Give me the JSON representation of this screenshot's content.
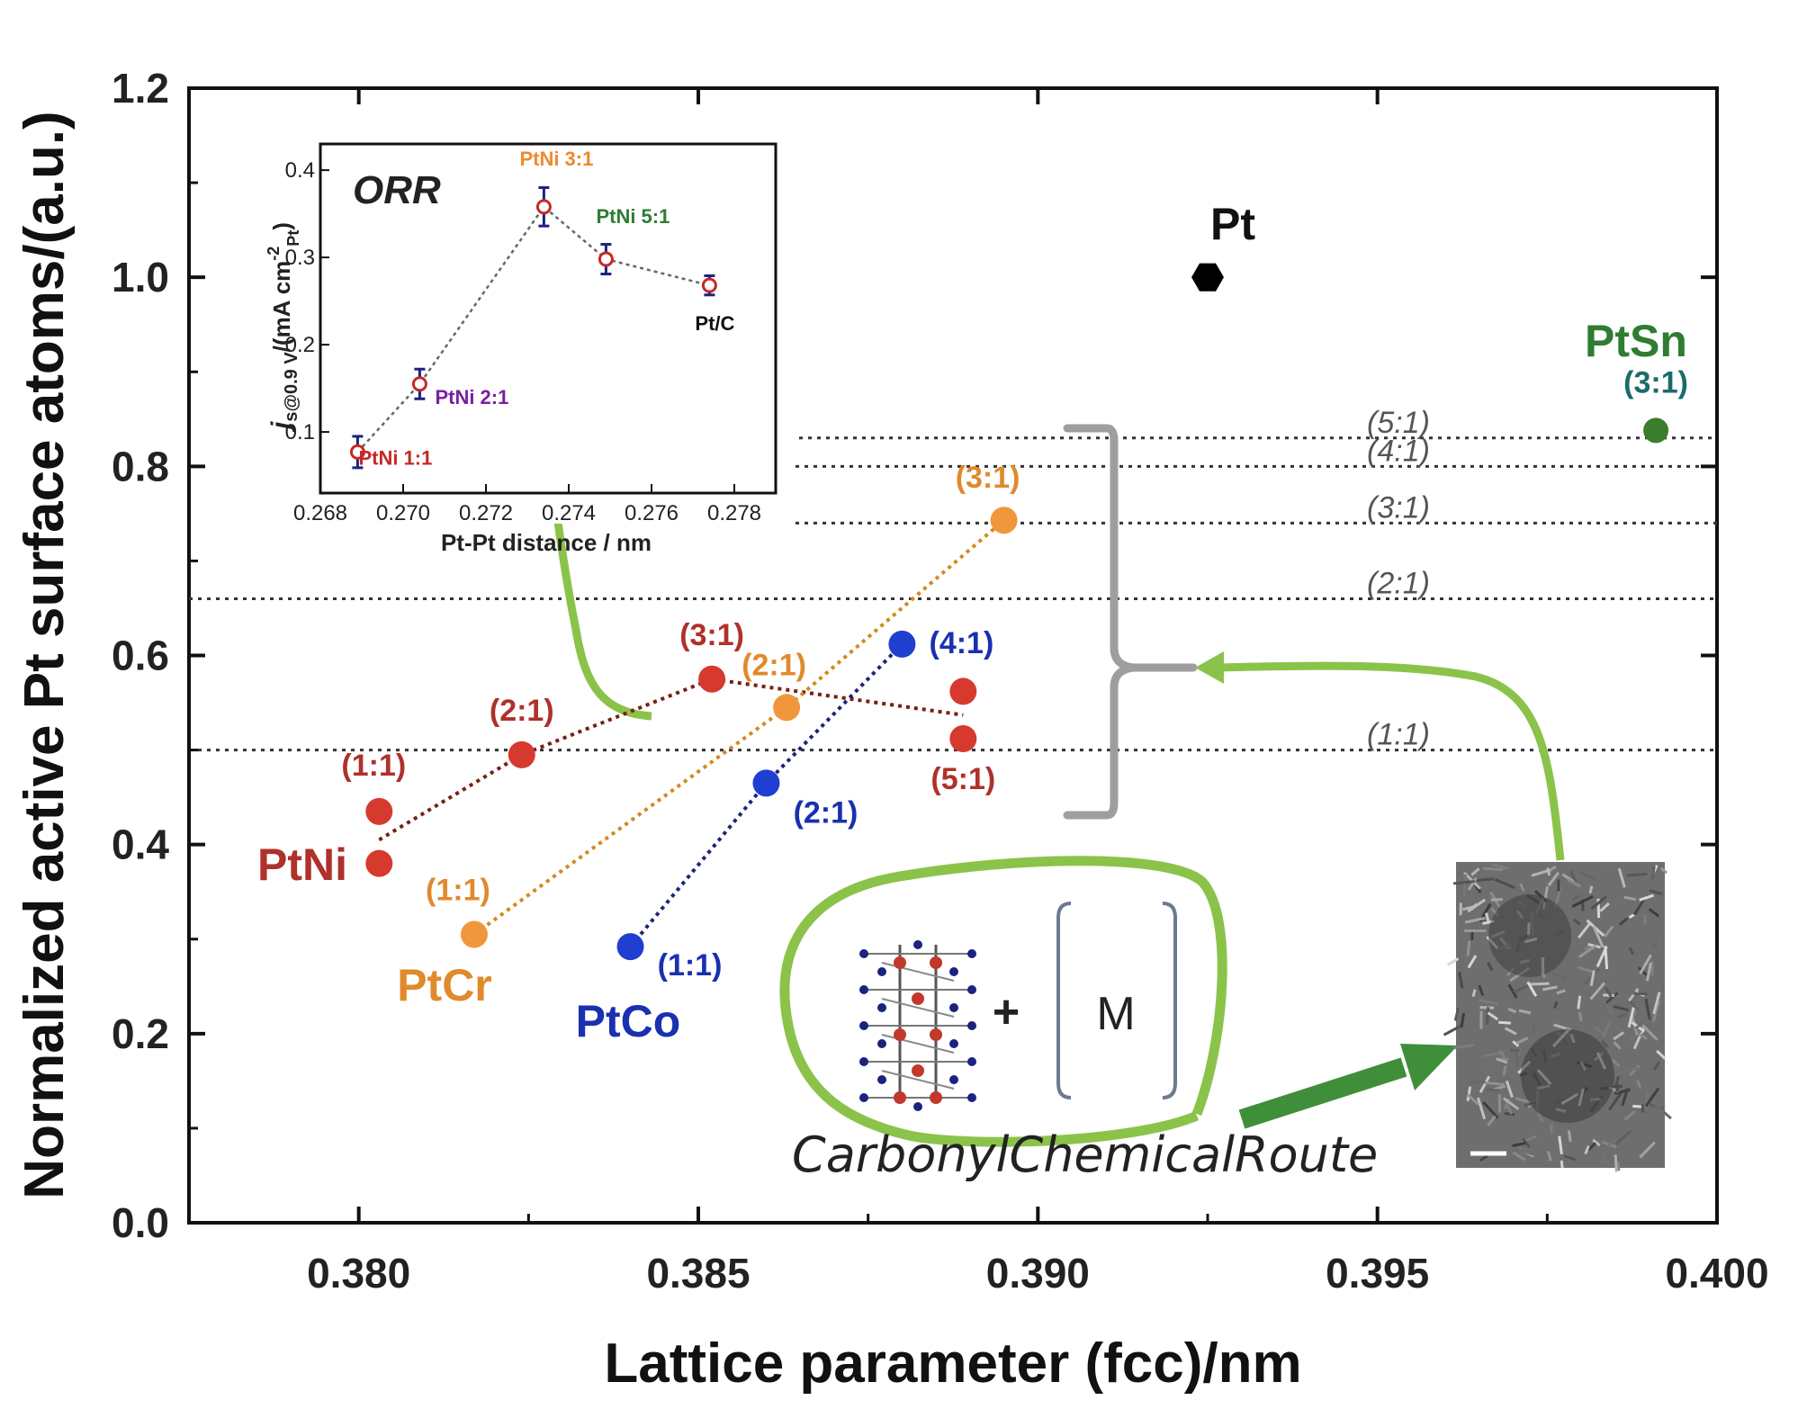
{
  "chart_data": [
    {
      "type": "scatter",
      "xlabel": "Lattice parameter (fcc)/nm",
      "ylabel": "Normalized active Pt surface atoms/(a.u.)",
      "xlim": [
        0.3775,
        0.4
      ],
      "ylim": [
        0.0,
        1.2
      ],
      "xticks": [
        "0.380",
        "0.385",
        "0.390",
        "0.395",
        "0.400"
      ],
      "yticks": [
        "0.0",
        "0.2",
        "0.4",
        "0.6",
        "0.8",
        "1.0",
        "1.2"
      ],
      "grid": false,
      "reference_lines": [
        {
          "label": "(5:1)",
          "y": 0.83
        },
        {
          "label": "(4:1)",
          "y": 0.8
        },
        {
          "label": "(3:1)",
          "y": 0.74
        },
        {
          "label": "(2:1)",
          "y": 0.66
        },
        {
          "label": "(1:1)",
          "y": 0.5
        }
      ],
      "series": [
        {
          "name": "PtNi",
          "color": "#d63a2f",
          "label_color": "#b0302a",
          "trend_color": "#7a1e14",
          "points": [
            {
              "x": 0.3803,
              "y": 0.435,
              "label": "(1:1)"
            },
            {
              "x": 0.3803,
              "y": 0.38,
              "label": ""
            },
            {
              "x": 0.3824,
              "y": 0.495,
              "label": "(2:1)"
            },
            {
              "x": 0.3852,
              "y": 0.575,
              "label": "(3:1)"
            },
            {
              "x": 0.3889,
              "y": 0.562,
              "label": ""
            },
            {
              "x": 0.3889,
              "y": 0.512,
              "label": "(5:1)"
            }
          ],
          "trend": [
            [
              0.3803,
              0.405
            ],
            [
              0.3824,
              0.495
            ],
            [
              0.3852,
              0.575
            ],
            [
              0.3889,
              0.537
            ]
          ]
        },
        {
          "name": "PtCr",
          "color": "#f0973c",
          "label_color": "#e08a2c",
          "trend_color": "#d4891e",
          "points": [
            {
              "x": 0.3817,
              "y": 0.305,
              "label": "(1:1)"
            },
            {
              "x": 0.3863,
              "y": 0.545,
              "label": "(2:1)"
            },
            {
              "x": 0.3895,
              "y": 0.743,
              "label": "(3:1)"
            }
          ],
          "trend": [
            [
              0.3817,
              0.305
            ],
            [
              0.3863,
              0.545
            ],
            [
              0.3895,
              0.743
            ]
          ]
        },
        {
          "name": "PtCo",
          "color": "#1f3fd1",
          "label_color": "#1a30b0",
          "trend_color": "#1a237e",
          "points": [
            {
              "x": 0.384,
              "y": 0.292,
              "label": "(1:1)"
            },
            {
              "x": 0.386,
              "y": 0.465,
              "label": "(2:1)"
            },
            {
              "x": 0.388,
              "y": 0.612,
              "label": "(4:1)"
            }
          ],
          "trend": [
            [
              0.384,
              0.292
            ],
            [
              0.386,
              0.465
            ],
            [
              0.388,
              0.612
            ]
          ]
        },
        {
          "name": "Pt",
          "color": "#000000",
          "label_color": "#111111",
          "points": [
            {
              "x": 0.3925,
              "y": 1.0,
              "label": ""
            }
          ]
        },
        {
          "name": "PtSn",
          "color": "#3a7d2c",
          "label_color": "#2e7d32",
          "points": [
            {
              "x": 0.3991,
              "y": 0.838,
              "label": "(3:1)",
              "label_color": "#1b6b6b"
            }
          ]
        }
      ],
      "annotations": {
        "route": "CarbonylChemicalRoute",
        "route_initials": [
          "C",
          "C",
          "R"
        ],
        "metal": "M",
        "plus": "+"
      }
    },
    {
      "type": "scatter",
      "title": "ORR",
      "xlabel": "Pt-Pt distance / nm",
      "ylabel_main": "j",
      "ylabel_sub": "s@0.9 V",
      "ylabel_unit": "/(mA cm",
      "ylabel_unit_sup": "-2",
      "ylabel_unit_sub": "Pt",
      "ylabel_unit_end": ")",
      "xlim": [
        0.268,
        0.279
      ],
      "ylim": [
        0.03,
        0.43
      ],
      "xticks": [
        "0.268",
        "0.270",
        "0.272",
        "0.274",
        "0.276",
        "0.278"
      ],
      "yticks": [
        "0.1",
        "0.2",
        "0.3",
        "0.4"
      ],
      "points": [
        {
          "x": 0.2689,
          "y": 0.077,
          "err": 0.018,
          "label": "PtNi 1:1",
          "label_color": "#c62828"
        },
        {
          "x": 0.2704,
          "y": 0.155,
          "err": 0.017,
          "label": "PtNi 2:1",
          "label_color": "#7b1fa2"
        },
        {
          "x": 0.2734,
          "y": 0.358,
          "err": 0.022,
          "label": "PtNi 3:1",
          "label_color": "#ef8a2c"
        },
        {
          "x": 0.2749,
          "y": 0.298,
          "err": 0.017,
          "label": "PtNi 5:1",
          "label_color": "#2e7d32"
        },
        {
          "x": 0.2774,
          "y": 0.268,
          "err": 0.011,
          "label": "Pt/C",
          "label_color": "#111111"
        }
      ]
    }
  ]
}
